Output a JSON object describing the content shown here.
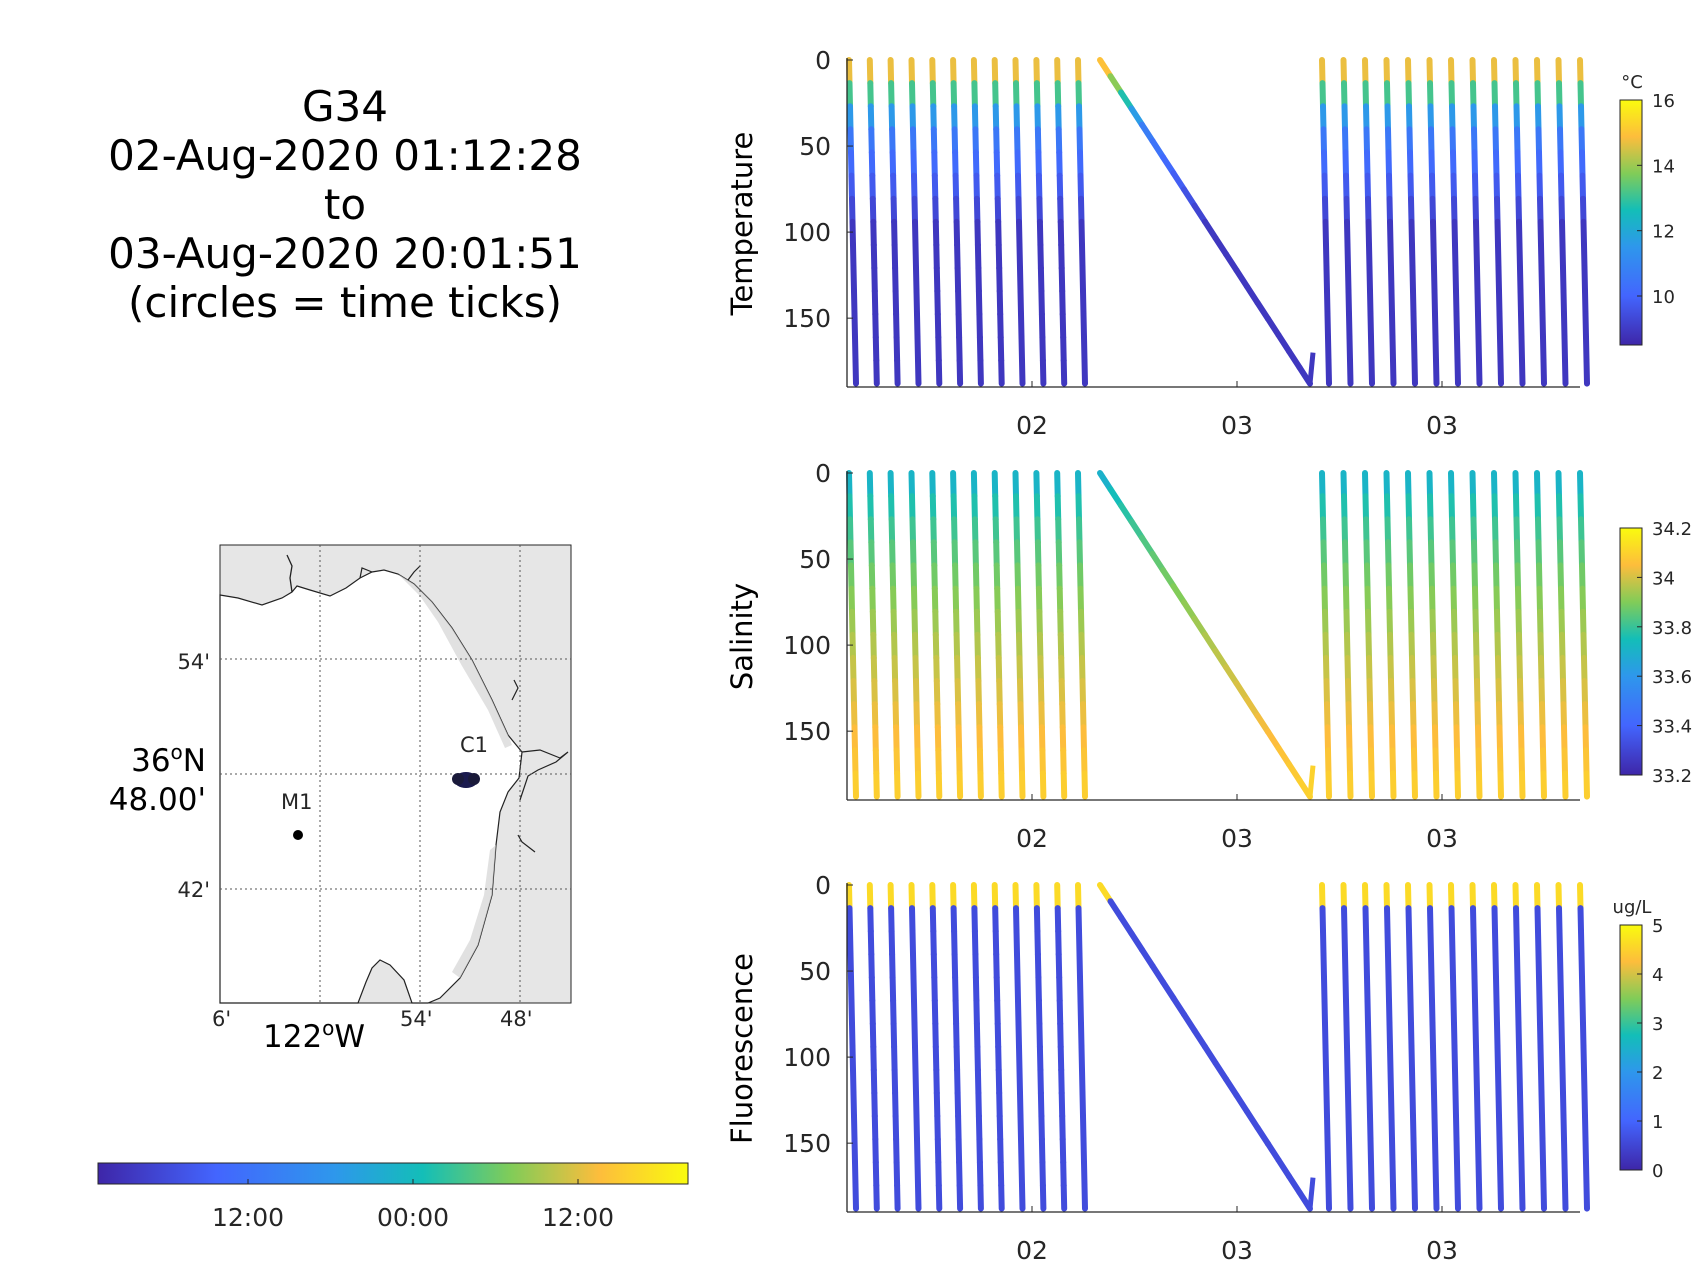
{
  "title": {
    "glider": "G34",
    "start": "02-Aug-2020 01:12:28",
    "to": "to",
    "end": "03-Aug-2020 20:01:51",
    "note": "(circles = time ticks)"
  },
  "map": {
    "lat_center": "36",
    "lat_min": "48.00'",
    "lat_ticks": [
      "54'",
      "42'"
    ],
    "lon_ticks": [
      "6'",
      "54'",
      "48'"
    ],
    "lon_label": "122",
    "lon_hemi": "W",
    "lat_hemi": "N",
    "stations": [
      "C1",
      "M1"
    ]
  },
  "time_colorbar": {
    "ticks": [
      "12:00",
      "00:00",
      "12:00"
    ],
    "colors": [
      "#3e26a8",
      "#4365fe",
      "#13beb8",
      "#81cc58",
      "#fdbd3c",
      "#f9fb0e"
    ]
  },
  "chart_data": [
    {
      "type": "scatter",
      "ylabel": "Temperature",
      "ylim": [
        0,
        190
      ],
      "yticks": [
        "0",
        "50",
        "100",
        "150"
      ],
      "xticks": [
        "02",
        "03",
        "03"
      ],
      "colorbar": {
        "unit": "°C",
        "ticks": [
          "16",
          "14",
          "12",
          "10"
        ],
        "range": [
          8.5,
          16
        ]
      },
      "profiles": {
        "before_transect": 12,
        "after_transect": 13,
        "max_depth": 188
      },
      "surface_value": 15.5,
      "deep_value": 8.9
    },
    {
      "type": "scatter",
      "ylabel": "Salinity",
      "ylim": [
        0,
        190
      ],
      "yticks": [
        "0",
        "50",
        "100",
        "150"
      ],
      "xticks": [
        "02",
        "03",
        "03"
      ],
      "colorbar": {
        "unit": "",
        "ticks": [
          "34.2",
          "34",
          "33.8",
          "33.6",
          "33.4",
          "33.2"
        ],
        "range": [
          33.2,
          34.2
        ]
      },
      "profiles": {
        "before_transect": 12,
        "after_transect": 13,
        "max_depth": 188
      },
      "surface_value": 33.65,
      "deep_value": 34.1
    },
    {
      "type": "scatter",
      "ylabel": "Fluorescence",
      "ylim": [
        0,
        190
      ],
      "yticks": [
        "0",
        "50",
        "100",
        "150"
      ],
      "xticks": [
        "02",
        "03",
        "03"
      ],
      "colorbar": {
        "unit": "ug/L",
        "ticks": [
          "5",
          "4",
          "3",
          "2",
          "1",
          "0"
        ],
        "range": [
          0,
          5
        ]
      },
      "profiles": {
        "before_transect": 12,
        "after_transect": 13,
        "max_depth": 188
      },
      "surface_value": 4.6,
      "deep_value": 0.6
    }
  ]
}
